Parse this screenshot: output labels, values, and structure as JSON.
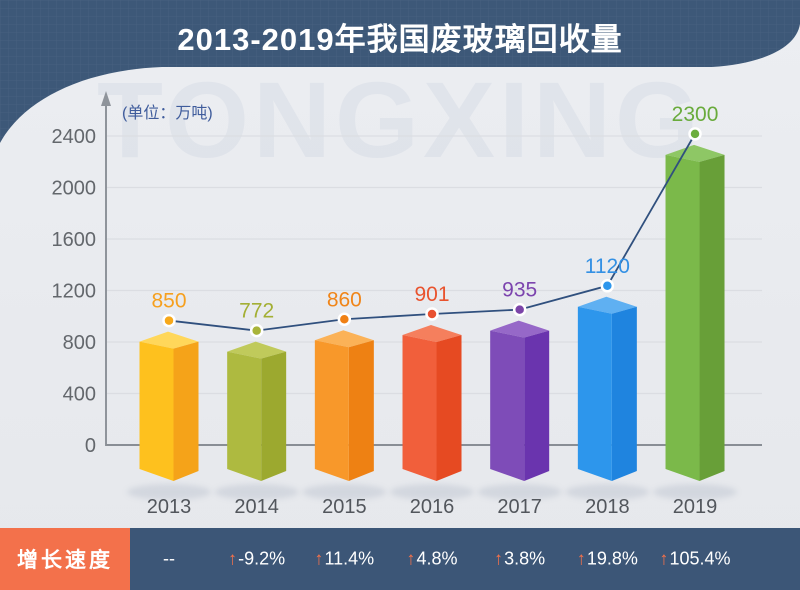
{
  "header": {
    "title": "2013-2019年我国废玻璃回收量",
    "bg": "#3D5878"
  },
  "watermark": "TONGXING",
  "chart_data": {
    "type": "bar",
    "overlay": "line",
    "title": "2013-2019年我国废玻璃回收量",
    "unit_label": "(单位：万吨)",
    "categories": [
      "2013",
      "2014",
      "2015",
      "2016",
      "2017",
      "2018",
      "2019"
    ],
    "values": [
      850,
      772,
      860,
      901,
      935,
      1120,
      2300
    ],
    "ylim": [
      0,
      2400
    ],
    "yticks": [
      0,
      400,
      800,
      1200,
      1600,
      2000,
      2400
    ],
    "grid": true,
    "legend": "none",
    "line_color": "#30507E",
    "axis_color": "#8F949B",
    "grid_color": "#DBDDE2",
    "tick_color": "#63676C",
    "unit_color": "#3F5C9C",
    "category_color": "#52565C",
    "bar_styles": [
      {
        "front": "#FEC11E",
        "side": "#F5A319",
        "top": "#FFD75A",
        "dot": "#F7A819",
        "label": "#F6A01E"
      },
      {
        "front": "#AEBA40",
        "side": "#9CA92F",
        "top": "#C0CA5B",
        "dot": "#A9B43A",
        "label": "#A3AF34"
      },
      {
        "front": "#F8982A",
        "side": "#EE8113",
        "top": "#FBB257",
        "dot": "#F08014",
        "label": "#F08519"
      },
      {
        "front": "#F15F3B",
        "side": "#E64A22",
        "top": "#F57F5D",
        "dot": "#E85030",
        "label": "#E9532E"
      },
      {
        "front": "#7E4CB8",
        "side": "#6A34AE",
        "top": "#9668C8",
        "dot": "#7B44A8",
        "label": "#7C44AE"
      },
      {
        "front": "#2D96EC",
        "side": "#1F84DF",
        "top": "#5FB0F2",
        "dot": "#2D96EC",
        "label": "#3390E4"
      },
      {
        "front": "#7BB94A",
        "side": "#689F38",
        "top": "#8EC765",
        "dot": "#6CAE3E",
        "label": "#69AB3C"
      }
    ]
  },
  "growth_row": {
    "label": "增长速度",
    "label_bg": "#F3714B",
    "band_bg": "#3C5677",
    "arrow_color": "#F3714B",
    "arrow_glyph": "↑",
    "items": [
      {
        "text": "--",
        "arrow": false
      },
      {
        "text": "-9.2%",
        "arrow": true
      },
      {
        "text": "11.4%",
        "arrow": true
      },
      {
        "text": "4.8%",
        "arrow": true
      },
      {
        "text": "3.8%",
        "arrow": true
      },
      {
        "text": "19.8%",
        "arrow": true
      },
      {
        "text": "105.4%",
        "arrow": true
      }
    ]
  }
}
